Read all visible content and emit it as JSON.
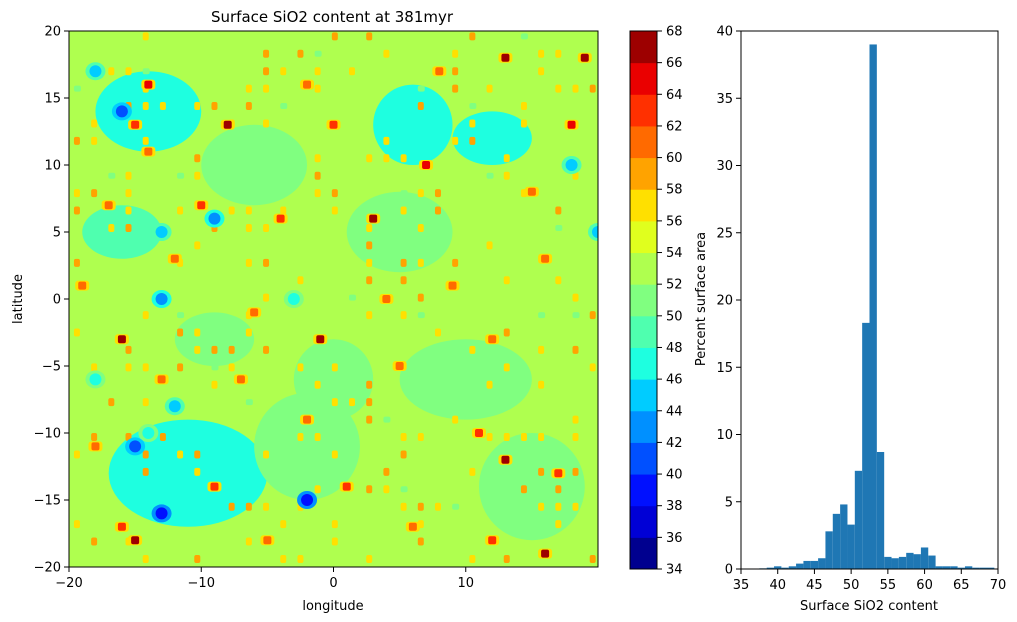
{
  "chart_data": [
    {
      "type": "heatmap",
      "title": "Surface SiO2 content at 381myr",
      "xlabel": "longitude",
      "ylabel": "latitude",
      "xlim": [
        -20,
        20
      ],
      "ylim": [
        -20,
        20
      ],
      "xticks": [
        -20,
        -10,
        0,
        10
      ],
      "yticks": [
        -20,
        -15,
        -10,
        -5,
        0,
        5,
        10,
        15,
        20
      ],
      "background_value": 52.5,
      "patches": [
        {
          "x": -17,
          "y": 7,
          "v": 60
        },
        {
          "x": -15,
          "y": 13,
          "v": 62
        },
        {
          "x": -14,
          "y": 16,
          "v": 64
        },
        {
          "x": -12,
          "y": 3,
          "v": 60
        },
        {
          "x": -10,
          "y": 7,
          "v": 62
        },
        {
          "x": -8,
          "y": 13,
          "v": 66
        },
        {
          "x": -6,
          "y": -1,
          "v": 60
        },
        {
          "x": -4,
          "y": 6,
          "v": 62
        },
        {
          "x": -2,
          "y": -9,
          "v": 60
        },
        {
          "x": 0,
          "y": 13,
          "v": 62
        },
        {
          "x": 3,
          "y": 6,
          "v": 66
        },
        {
          "x": 5,
          "y": -5,
          "v": 60
        },
        {
          "x": 7,
          "y": 10,
          "v": 64
        },
        {
          "x": 9,
          "y": 1,
          "v": 60
        },
        {
          "x": 11,
          "y": -10,
          "v": 62
        },
        {
          "x": 13,
          "y": 18,
          "v": 66
        },
        {
          "x": 15,
          "y": 8,
          "v": 60
        },
        {
          "x": 17,
          "y": -13,
          "v": 62
        },
        {
          "x": 18,
          "y": 13,
          "v": 64
        },
        {
          "x": -18,
          "y": -11,
          "v": 60
        },
        {
          "x": -16,
          "y": -17,
          "v": 62
        },
        {
          "x": -13,
          "y": -6,
          "v": 60
        },
        {
          "x": -9,
          "y": -14,
          "v": 62
        },
        {
          "x": -5,
          "y": -18,
          "v": 60
        },
        {
          "x": 1,
          "y": -14,
          "v": 62
        },
        {
          "x": 6,
          "y": -17,
          "v": 60
        },
        {
          "x": 12,
          "y": -18,
          "v": 62
        },
        {
          "x": 16,
          "y": -19,
          "v": 66
        },
        {
          "x": -14,
          "y": 11,
          "v": 60
        },
        {
          "x": -2,
          "y": 16,
          "v": 60
        },
        {
          "x": 8,
          "y": 17,
          "v": 60
        },
        {
          "x": 16,
          "y": 3,
          "v": 60
        },
        {
          "x": -19,
          "y": 1,
          "v": 60
        },
        {
          "x": 4,
          "y": 0,
          "v": 60
        },
        {
          "x": 12,
          "y": -3,
          "v": 60
        },
        {
          "x": -7,
          "y": -6,
          "v": 60
        },
        {
          "x": -16,
          "y": -3,
          "v": 66
        },
        {
          "x": -1,
          "y": -3,
          "v": 66
        },
        {
          "x": 13,
          "y": -12,
          "v": 66
        },
        {
          "x": -15,
          "y": -18,
          "v": 66
        },
        {
          "x": 19,
          "y": 18,
          "v": 66
        }
      ],
      "blue_patches": [
        {
          "x": -18,
          "y": 17,
          "v": 44
        },
        {
          "x": -16,
          "y": 14,
          "v": 40
        },
        {
          "x": -13,
          "y": 5,
          "v": 44
        },
        {
          "x": -9,
          "y": 6,
          "v": 42
        },
        {
          "x": -14,
          "y": -10,
          "v": 46
        },
        {
          "x": -15,
          "y": -11,
          "v": 40
        },
        {
          "x": -13,
          "y": -16,
          "v": 38
        },
        {
          "x": -2,
          "y": -15,
          "v": 38
        },
        {
          "x": -13,
          "y": 0,
          "v": 42
        },
        {
          "x": -12,
          "y": -8,
          "v": 44
        },
        {
          "x": 18,
          "y": 10,
          "v": 44
        },
        {
          "x": 20,
          "y": 5,
          "v": 44
        },
        {
          "x": -3,
          "y": 0,
          "v": 46
        },
        {
          "x": -18,
          "y": -6,
          "v": 46
        }
      ],
      "cyan_regions": [
        {
          "x": -11,
          "y": -13,
          "rx": 6,
          "ry": 4,
          "v": 47
        },
        {
          "x": -14,
          "y": 14,
          "rx": 4,
          "ry": 3,
          "v": 47
        },
        {
          "x": 6,
          "y": 13,
          "rx": 3,
          "ry": 3,
          "v": 47
        },
        {
          "x": 12,
          "y": 12,
          "rx": 3,
          "ry": 2,
          "v": 47
        },
        {
          "x": -16,
          "y": 5,
          "rx": 3,
          "ry": 2,
          "v": 49
        },
        {
          "x": -2,
          "y": -11,
          "rx": 4,
          "ry": 4,
          "v": 51
        },
        {
          "x": 5,
          "y": 5,
          "rx": 4,
          "ry": 3,
          "v": 51
        },
        {
          "x": 10,
          "y": -6,
          "rx": 5,
          "ry": 3,
          "v": 51
        },
        {
          "x": 15,
          "y": -14,
          "rx": 4,
          "ry": 4,
          "v": 51
        },
        {
          "x": -6,
          "y": 10,
          "rx": 4,
          "ry": 3,
          "v": 51
        },
        {
          "x": 0,
          "y": -6,
          "rx": 3,
          "ry": 3,
          "v": 51
        },
        {
          "x": -9,
          "y": -3,
          "rx": 3,
          "ry": 2,
          "v": 51
        }
      ]
    },
    {
      "type": "colorbar",
      "ticks": [
        34,
        36,
        38,
        40,
        42,
        44,
        46,
        48,
        50,
        52,
        54,
        56,
        58,
        60,
        62,
        64,
        66,
        68
      ],
      "levels": [
        34,
        36,
        38,
        40,
        42,
        44,
        46,
        48,
        50,
        52,
        54,
        56,
        58,
        60,
        62,
        64,
        66,
        68
      ],
      "colors": [
        "#00008f",
        "#0000d6",
        "#0010ff",
        "#0050ff",
        "#0090ff",
        "#00ccff",
        "#1effe0",
        "#4fffaf",
        "#80ff80",
        "#afff4f",
        "#e0ff1e",
        "#ffe000",
        "#ffa300",
        "#ff6a00",
        "#ff3000",
        "#ea0000",
        "#9d0000"
      ]
    },
    {
      "type": "bar",
      "xlabel": "Surface SiO2 content",
      "ylabel": "Percent surface area",
      "xlim": [
        35,
        70
      ],
      "ylim": [
        0,
        40
      ],
      "xticks": [
        35,
        40,
        45,
        50,
        55,
        60,
        65,
        70
      ],
      "yticks": [
        0,
        5,
        10,
        15,
        20,
        25,
        30,
        35,
        40
      ],
      "bin_width": 1,
      "bins": [
        {
          "x": 38,
          "y": 0.05
        },
        {
          "x": 39,
          "y": 0.1
        },
        {
          "x": 40,
          "y": 0.2
        },
        {
          "x": 41,
          "y": 0.1
        },
        {
          "x": 42,
          "y": 0.2
        },
        {
          "x": 43,
          "y": 0.4
        },
        {
          "x": 44,
          "y": 0.6
        },
        {
          "x": 45,
          "y": 0.6
        },
        {
          "x": 46,
          "y": 0.8
        },
        {
          "x": 47,
          "y": 2.8
        },
        {
          "x": 48,
          "y": 4.1
        },
        {
          "x": 49,
          "y": 4.8
        },
        {
          "x": 50,
          "y": 3.3
        },
        {
          "x": 51,
          "y": 7.3
        },
        {
          "x": 52,
          "y": 18.3
        },
        {
          "x": 53,
          "y": 39.0
        },
        {
          "x": 54,
          "y": 8.7
        },
        {
          "x": 55,
          "y": 0.9
        },
        {
          "x": 56,
          "y": 0.8
        },
        {
          "x": 57,
          "y": 0.9
        },
        {
          "x": 58,
          "y": 1.2
        },
        {
          "x": 59,
          "y": 1.1
        },
        {
          "x": 60,
          "y": 1.6
        },
        {
          "x": 61,
          "y": 1.0
        },
        {
          "x": 62,
          "y": 0.2
        },
        {
          "x": 63,
          "y": 0.2
        },
        {
          "x": 64,
          "y": 0.2
        },
        {
          "x": 65,
          "y": 0.1
        },
        {
          "x": 66,
          "y": 0.2
        },
        {
          "x": 67,
          "y": 0.1
        },
        {
          "x": 68,
          "y": 0.1
        },
        {
          "x": 69,
          "y": 0.1
        }
      ],
      "bar_color": "#1f77b4"
    }
  ]
}
